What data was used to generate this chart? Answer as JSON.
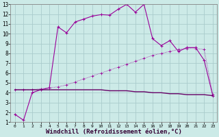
{
  "bg_color": "#cceae7",
  "line_color": "#990099",
  "grid_color": "#aacccc",
  "xlabel": "Windchill (Refroidissement éolien,°C)",
  "xlabel_fontsize": 6.5,
  "xlim": [
    -0.5,
    23.5
  ],
  "ylim": [
    1,
    13
  ],
  "yticks": [
    1,
    2,
    3,
    4,
    5,
    6,
    7,
    8,
    9,
    10,
    11,
    12,
    13
  ],
  "xticks": [
    0,
    1,
    2,
    3,
    4,
    5,
    6,
    7,
    8,
    9,
    10,
    11,
    12,
    13,
    14,
    15,
    16,
    17,
    18,
    19,
    20,
    21,
    22,
    23
  ],
  "line1_x": [
    0,
    1,
    2,
    3,
    4,
    5,
    6,
    7,
    8,
    9,
    10,
    11,
    12,
    13,
    14,
    15,
    16,
    17,
    18,
    19,
    20,
    21,
    22,
    23
  ],
  "line1_y": [
    1.8,
    1.2,
    4.0,
    4.3,
    4.5,
    10.7,
    10.1,
    11.2,
    11.5,
    11.8,
    11.95,
    11.9,
    12.5,
    13.0,
    12.2,
    13.0,
    9.5,
    8.8,
    9.3,
    8.2,
    8.6,
    8.6,
    7.3,
    3.7
  ],
  "line2_x": [
    0,
    1,
    2,
    3,
    4,
    5,
    6,
    7,
    8,
    9,
    10,
    11,
    12,
    13,
    14,
    15,
    16,
    17,
    18,
    19,
    20,
    21,
    22,
    23
  ],
  "line2_y": [
    4.3,
    4.3,
    4.3,
    4.4,
    4.5,
    4.6,
    4.8,
    5.1,
    5.4,
    5.7,
    6.0,
    6.3,
    6.6,
    6.9,
    7.2,
    7.5,
    7.8,
    8.0,
    8.2,
    8.4,
    8.5,
    8.5,
    8.4,
    3.8
  ],
  "line3_x": [
    0,
    1,
    2,
    3,
    4,
    5,
    6,
    7,
    8,
    9,
    10,
    11,
    12,
    13,
    14,
    15,
    16,
    17,
    18,
    19,
    20,
    21,
    22,
    23
  ],
  "line3_y": [
    4.3,
    4.3,
    4.3,
    4.3,
    4.3,
    4.3,
    4.3,
    4.3,
    4.3,
    4.3,
    4.3,
    4.2,
    4.2,
    4.2,
    4.1,
    4.1,
    4.0,
    4.0,
    3.9,
    3.9,
    3.8,
    3.8,
    3.8,
    3.7
  ]
}
